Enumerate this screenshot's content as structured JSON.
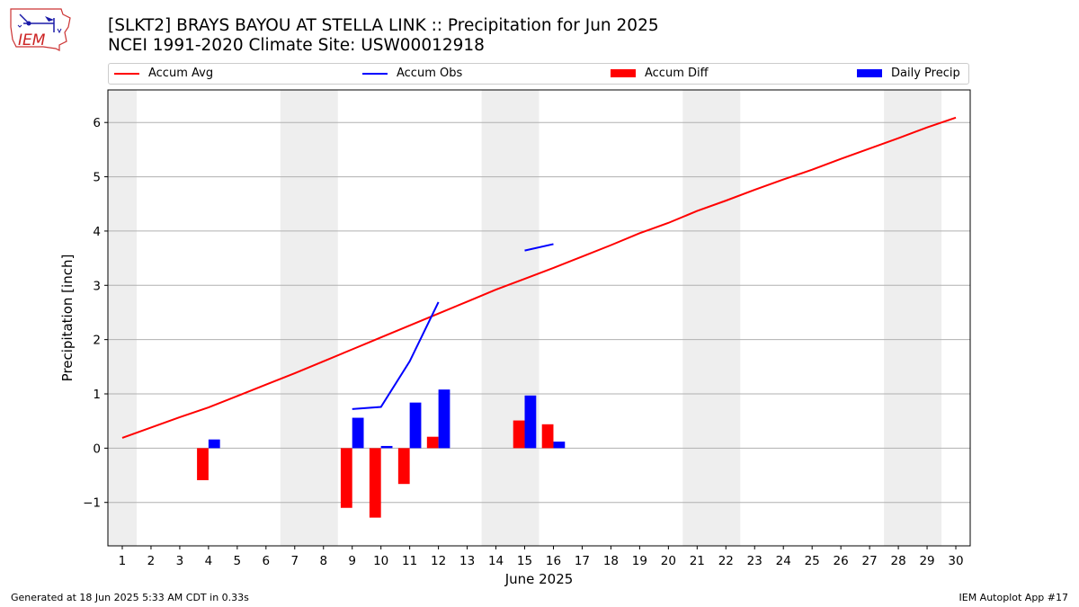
{
  "header": {
    "title_line1": "[SLKT2] BRAYS BAYOU AT STELLA LINK :: Precipitation for Jun 2025",
    "title_line2": "NCEI 1991-2020 Climate Site: USW00012918"
  },
  "logo": {
    "text": "IEM",
    "icon": "iem-logo-icon"
  },
  "footer": {
    "left": "Generated at 18 Jun 2025 5:33 AM CDT in 0.33s",
    "right": "IEM Autoplot App #17"
  },
  "colors": {
    "avg": "#ff0000",
    "obs": "#0000ff",
    "diff": "#ff0000",
    "daily": "#0000ff",
    "shade": "#eeeeee",
    "grid": "#b0b0b0"
  },
  "chart_data": {
    "type": "bar",
    "title": "[SLKT2] BRAYS BAYOU AT STELLA LINK :: Precipitation for Jun 2025",
    "xlabel": "June 2025",
    "ylabel": "Precipitation [inch]",
    "xlim": [
      0.5,
      30.5
    ],
    "ylim": [
      -1.8,
      6.6
    ],
    "x_ticks": [
      1,
      2,
      3,
      4,
      5,
      6,
      7,
      8,
      9,
      10,
      11,
      12,
      13,
      14,
      15,
      16,
      17,
      18,
      19,
      20,
      21,
      22,
      23,
      24,
      25,
      26,
      27,
      28,
      29,
      30
    ],
    "y_ticks": [
      -1,
      0,
      1,
      2,
      3,
      4,
      5,
      6
    ],
    "y_tick_labels": [
      "−1",
      "0",
      "1",
      "2",
      "3",
      "4",
      "5",
      "6"
    ],
    "weekend_spans": [
      [
        0.5,
        1.5
      ],
      [
        6.5,
        8.5
      ],
      [
        13.5,
        15.5
      ],
      [
        20.5,
        22.5
      ],
      [
        27.5,
        29.5
      ]
    ],
    "legend": [
      "Accum Avg",
      "Accum Obs",
      "Accum Diff",
      "Daily Precip"
    ],
    "series": [
      {
        "name": "Accum Avg",
        "kind": "line",
        "x": [
          1,
          2,
          3,
          4,
          5,
          6,
          7,
          8,
          9,
          10,
          11,
          12,
          13,
          14,
          15,
          16,
          17,
          18,
          19,
          20,
          21,
          22,
          23,
          24,
          25,
          26,
          27,
          28,
          29,
          30
        ],
        "values": [
          0.19,
          0.38,
          0.57,
          0.75,
          0.96,
          1.17,
          1.38,
          1.6,
          1.82,
          2.04,
          2.26,
          2.48,
          2.7,
          2.92,
          3.12,
          3.32,
          3.53,
          3.74,
          3.96,
          4.15,
          4.37,
          4.56,
          4.76,
          4.95,
          5.13,
          5.33,
          5.52,
          5.71,
          5.91,
          6.09
        ]
      },
      {
        "name": "Accum Obs",
        "kind": "line",
        "segments": [
          {
            "x": [
              9,
              10,
              11,
              12
            ],
            "values": [
              0.72,
              0.76,
              1.6,
              2.69
            ]
          },
          {
            "x": [
              15,
              16
            ],
            "values": [
              3.64,
              3.76
            ]
          }
        ]
      },
      {
        "name": "Accum Diff",
        "kind": "bar",
        "x": [
          4,
          9,
          10,
          11,
          12,
          15,
          16
        ],
        "values": [
          -0.59,
          -1.1,
          -1.28,
          -0.66,
          0.21,
          0.51,
          0.44
        ]
      },
      {
        "name": "Daily Precip",
        "kind": "bar",
        "x": [
          4,
          9,
          10,
          11,
          12,
          15,
          16
        ],
        "values": [
          0.16,
          0.56,
          0.04,
          0.84,
          1.08,
          0.97,
          0.12
        ]
      }
    ]
  }
}
